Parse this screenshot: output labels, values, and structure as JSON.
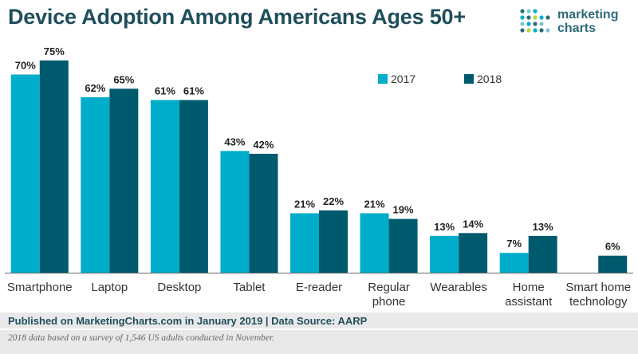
{
  "header": {
    "title": "Device Adoption Among Americans Ages 50+"
  },
  "logo": {
    "line1": "marketing",
    "line2": "charts"
  },
  "colors": {
    "series_2017": "#00aecb",
    "series_2018": "#005a6e",
    "title": "#1f4e5c",
    "footer_bg": "#e9e9e9"
  },
  "chart_data": {
    "type": "bar",
    "title": "Device Adoption Among Americans Ages 50+",
    "xlabel": "",
    "ylabel": "",
    "ylim": [
      0,
      80
    ],
    "grid": false,
    "legend_position": "top-right",
    "categories": [
      "Smartphone",
      "Laptop",
      "Desktop",
      "Tablet",
      "E-reader",
      "Regular phone",
      "Wearables",
      "Home assistant",
      "Smart home technology"
    ],
    "category_lines": [
      [
        "Smartphone"
      ],
      [
        "Laptop"
      ],
      [
        "Desktop"
      ],
      [
        "Tablet"
      ],
      [
        "E-reader"
      ],
      [
        "Regular",
        "phone"
      ],
      [
        "Wearables"
      ],
      [
        "Home",
        "assistant"
      ],
      [
        "Smart home",
        "technology"
      ]
    ],
    "series": [
      {
        "name": "2017",
        "values": [
          70,
          62,
          61,
          43,
          21,
          21,
          13,
          7,
          null
        ]
      },
      {
        "name": "2018",
        "values": [
          75,
          65,
          61,
          42,
          22,
          19,
          14,
          13,
          6
        ]
      }
    ],
    "value_suffix": "%"
  },
  "footer": {
    "source": "Published on MarketingCharts.com in January 2019 | Data Source: AARP",
    "note": "2018 data based on a survey of 1,546 US adults conducted in November."
  }
}
